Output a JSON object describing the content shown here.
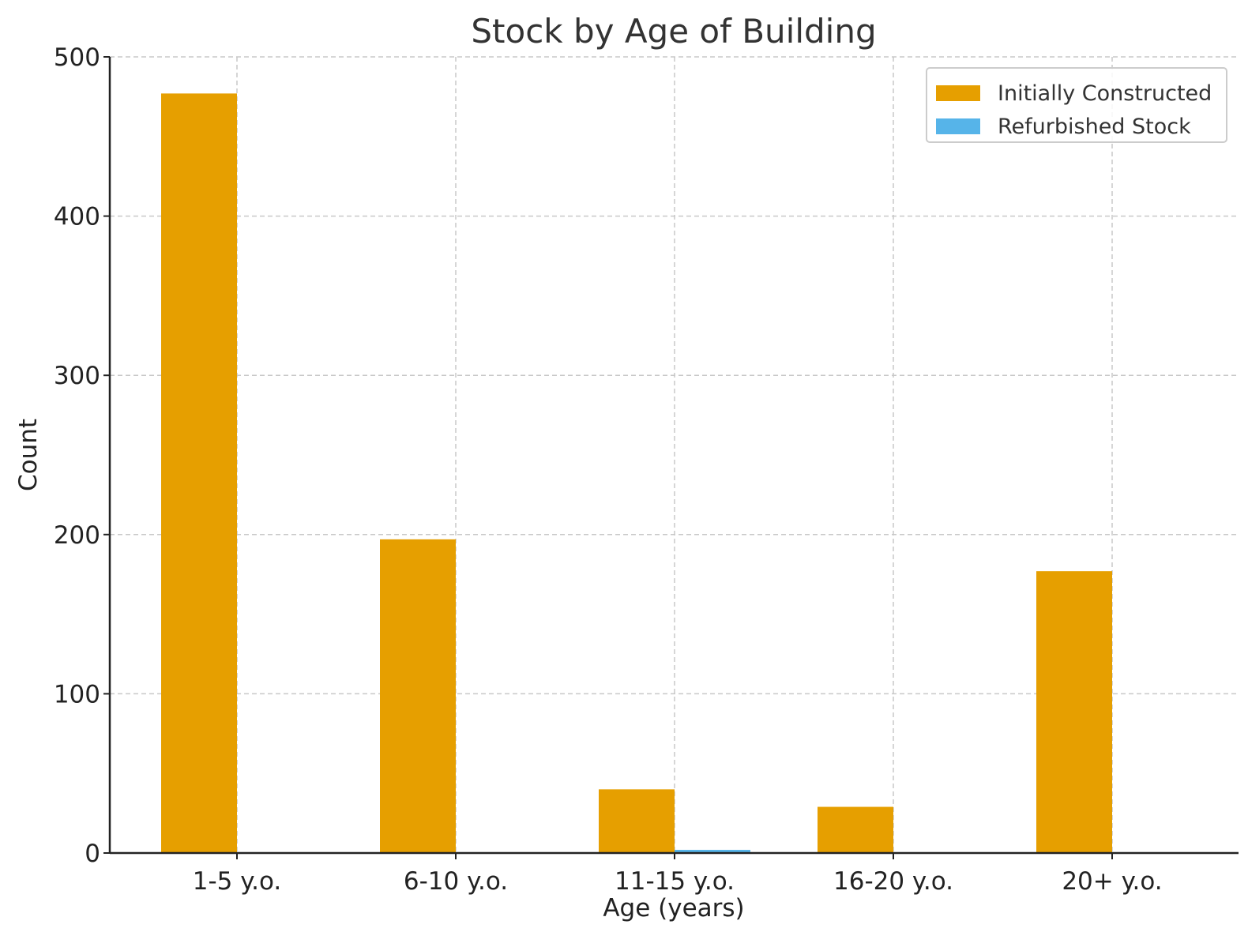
{
  "chart_data": {
    "type": "bar",
    "title": "Stock by Age of Building",
    "xlabel": "Age (years)",
    "ylabel": "Count",
    "categories": [
      "1-5 y.o.",
      "6-10 y.o.",
      "11-15 y.o.",
      "16-20 y.o.",
      "20+ y.o."
    ],
    "series": [
      {
        "name": "Initially Constructed",
        "color": "#E69F00",
        "values": [
          477,
          197,
          40,
          29,
          177
        ]
      },
      {
        "name": "Refurbished Stock",
        "color": "#56B4E9",
        "values": [
          0,
          0,
          2,
          0,
          0
        ]
      }
    ],
    "ylim": [
      0,
      500
    ],
    "yticks": [
      0,
      100,
      200,
      300,
      400,
      500
    ],
    "grid": true,
    "legend": "top-right"
  }
}
